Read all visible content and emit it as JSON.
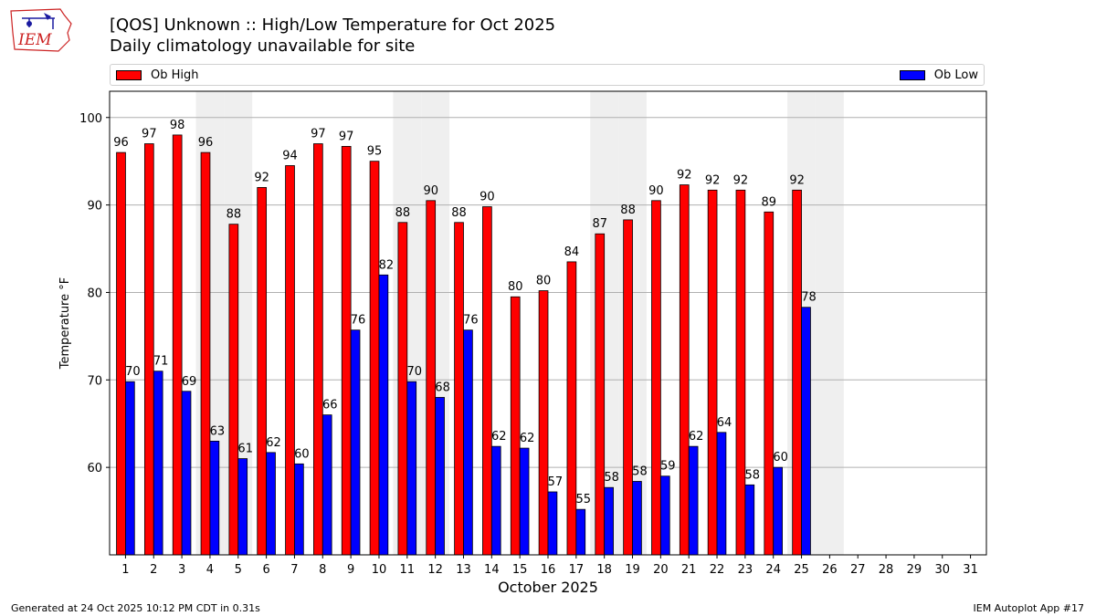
{
  "title_line1": "[QOS] Unknown :: High/Low Temperature for Oct 2025",
  "title_line2": "Daily climatology unavailable for site",
  "logo_text": "IEM",
  "footer_left": "Generated at 24 Oct 2025 10:12 PM CDT in 0.31s",
  "footer_right": "IEM Autoplot App #17",
  "chart_data": {
    "type": "bar",
    "xlabel": "October 2025",
    "ylabel": "Temperature °F",
    "ylim": [
      50,
      103
    ],
    "yticks": [
      60,
      70,
      80,
      90,
      100
    ],
    "grid": "horizontal",
    "legend_placement": "top",
    "categories": [
      "1",
      "2",
      "3",
      "4",
      "5",
      "6",
      "7",
      "8",
      "9",
      "10",
      "11",
      "12",
      "13",
      "14",
      "15",
      "16",
      "17",
      "18",
      "19",
      "20",
      "21",
      "22",
      "23",
      "24",
      "25",
      "26",
      "27",
      "28",
      "29",
      "30",
      "31"
    ],
    "weekend_days": [
      4,
      5,
      11,
      12,
      18,
      19,
      25,
      26
    ],
    "series": [
      {
        "name": "Ob High",
        "color": "#ff0000",
        "values": [
          96,
          97,
          98,
          96,
          87.8,
          92,
          94.5,
          97,
          96.7,
          95,
          88,
          90.5,
          88,
          89.8,
          79.5,
          80.2,
          83.5,
          86.7,
          88.3,
          90.5,
          92.3,
          91.7,
          91.7,
          89.2,
          91.7,
          null,
          null,
          null,
          null,
          null,
          null
        ],
        "labels": [
          "96",
          "97",
          "98",
          "96",
          "88",
          "92",
          "94",
          "97",
          "97",
          "95",
          "88",
          "90",
          "88",
          "90",
          "80",
          "80",
          "84",
          "87",
          "88",
          "90",
          "92",
          "92",
          "92",
          "89",
          "92",
          "",
          "",
          "",
          "",
          "",
          ""
        ]
      },
      {
        "name": "Ob Low",
        "color": "#0000ff",
        "values": [
          69.8,
          71,
          68.7,
          63,
          61,
          61.7,
          60.4,
          66,
          75.7,
          82,
          69.8,
          68,
          75.7,
          62.4,
          62.2,
          57.2,
          55.2,
          57.7,
          58.4,
          59,
          62.4,
          64,
          58,
          60,
          78.3,
          null,
          null,
          null,
          null,
          null,
          null
        ],
        "labels": [
          "70",
          "71",
          "69",
          "63",
          "61",
          "62",
          "60",
          "66",
          "76",
          "82",
          "70",
          "68",
          "76",
          "62",
          "62",
          "57",
          "55",
          "58",
          "58",
          "59",
          "62",
          "64",
          "58",
          "60",
          "78",
          "",
          "",
          "",
          "",
          "",
          ""
        ]
      }
    ]
  }
}
